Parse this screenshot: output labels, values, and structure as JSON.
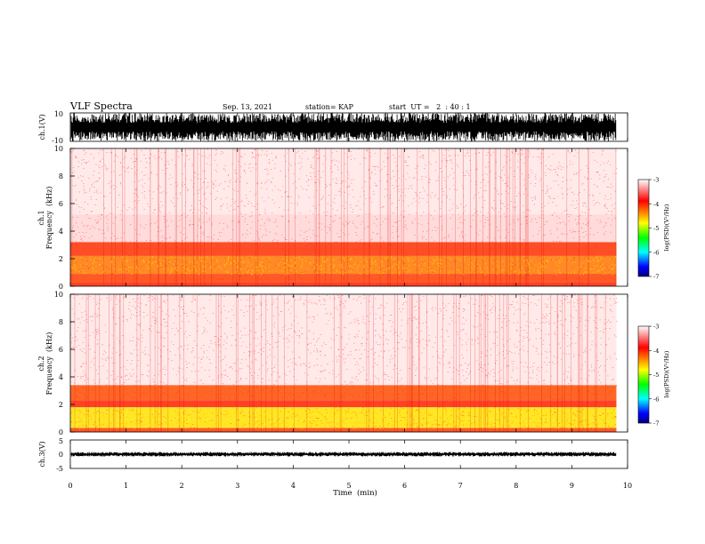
{
  "header": {
    "title": "VLF Spectra",
    "date": "Sep. 13, 2021",
    "station": "station= KAP",
    "start": "start  UT =   2  : 40 : 1"
  },
  "colors": {
    "waveform": "#000000",
    "spectrogram_background": "#ffffff",
    "colormap": [
      "#ffffff",
      "#ff0000",
      "#ffff00",
      "#00ff00",
      "#00ffff",
      "#0000ff",
      "#000080"
    ]
  },
  "chart_data": [
    {
      "type": "line",
      "name": "ch1-waveform",
      "ylabel": "ch.1(V)",
      "ylim": [
        -10,
        10
      ],
      "yticks": [
        "10",
        "-10"
      ],
      "description_values": {
        "amplitude_min": -10,
        "amplitude_max": 10
      },
      "xlim": [
        0,
        10
      ],
      "data_extent_min": 9.8
    },
    {
      "type": "heatmap",
      "name": "ch1-spectrogram",
      "ylabel_line1": "ch.1",
      "ylabel_line2": "Frequency  (kHz)",
      "ylim": [
        0,
        10
      ],
      "yticks": [
        "0",
        "2",
        "4",
        "6",
        "8",
        "10"
      ],
      "xlim": [
        0,
        10
      ],
      "data_extent_min": 9.8,
      "bands": [
        {
          "f_from": 0.0,
          "f_to": 0.3,
          "level": -4.0
        },
        {
          "f_from": 0.3,
          "f_to": 0.9,
          "level": -4.1
        },
        {
          "f_from": 0.9,
          "f_to": 2.2,
          "level": -4.3
        },
        {
          "f_from": 2.2,
          "f_to": 3.2,
          "level": -4.05
        },
        {
          "f_from": 3.2,
          "f_to": 5.2,
          "level": -3.5
        },
        {
          "f_from": 5.2,
          "f_to": 10.0,
          "level": -3.3
        }
      ],
      "colorbar": {
        "label": "log(PSD)(V²/Hz)",
        "range": [
          -7,
          -3
        ],
        "ticks": [
          "-3",
          "-4",
          "-5",
          "-6",
          "-7"
        ]
      }
    },
    {
      "type": "heatmap",
      "name": "ch2-spectrogram",
      "ylabel_line1": "ch.2",
      "ylabel_line2": "Frequency  (kHz)",
      "ylim": [
        0,
        10
      ],
      "yticks": [
        "0",
        "2",
        "4",
        "6",
        "8",
        "10"
      ],
      "xlim": [
        0,
        10
      ],
      "data_extent_min": 9.8,
      "bands": [
        {
          "f_from": 0.0,
          "f_to": 0.3,
          "level": -4.1
        },
        {
          "f_from": 0.3,
          "f_to": 1.8,
          "level": -4.7
        },
        {
          "f_from": 1.8,
          "f_to": 2.3,
          "level": -4.0
        },
        {
          "f_from": 2.3,
          "f_to": 3.4,
          "level": -4.15
        },
        {
          "f_from": 3.4,
          "f_to": 10.0,
          "level": -3.3
        }
      ],
      "colorbar": {
        "label": "log(PSD)(V²/Hz)",
        "range": [
          -7,
          -3
        ],
        "ticks": [
          "-3",
          "-4",
          "-5",
          "-6",
          "-7"
        ]
      }
    },
    {
      "type": "line",
      "name": "ch3-waveform",
      "ylabel": "ch.3(V)",
      "ylim": [
        -5,
        5
      ],
      "yticks": [
        "5",
        "0",
        "-5"
      ],
      "description_values": {
        "amplitude_min": -0.8,
        "amplitude_max": 0.8
      },
      "xlim": [
        0,
        10
      ],
      "data_extent_min": 9.8,
      "xlabel": "Time  (min)",
      "xticks": [
        "0",
        "1",
        "2",
        "3",
        "4",
        "5",
        "6",
        "7",
        "8",
        "9",
        "10"
      ]
    }
  ]
}
